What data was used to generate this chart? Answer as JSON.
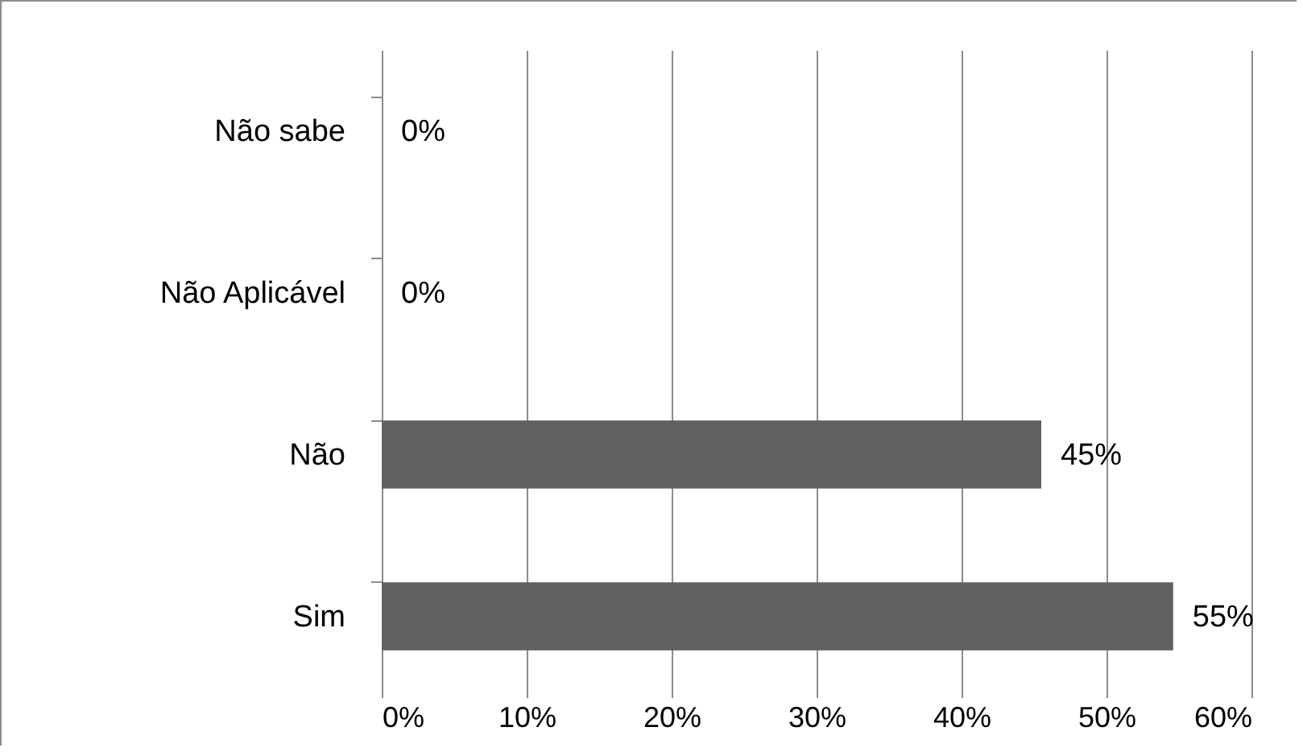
{
  "chart_data": {
    "type": "bar",
    "orientation": "horizontal",
    "categories": [
      "Não sabe",
      "Não Aplicável",
      "Não",
      "Sim"
    ],
    "values": [
      0,
      0,
      45.5,
      54.6
    ],
    "value_labels": [
      "0%",
      "0%",
      "45%",
      "55%"
    ],
    "color": "#606060",
    "xlim": [
      0,
      60
    ],
    "xticks": [
      {
        "value": 0,
        "label": "0%"
      },
      {
        "value": 10,
        "label": "10%"
      },
      {
        "value": 20,
        "label": "20%"
      },
      {
        "value": 30,
        "label": "30%"
      },
      {
        "value": 40,
        "label": "40%"
      },
      {
        "value": 50,
        "label": "50%"
      },
      {
        "value": 60,
        "label": "60%"
      }
    ],
    "grid": "x"
  }
}
